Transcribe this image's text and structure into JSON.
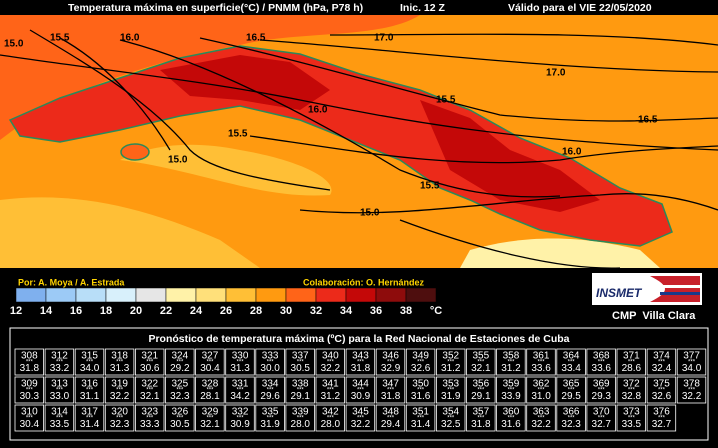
{
  "header": {
    "title": "Temperatura máxima en superficie(°C) / PNMM (hPa, P78 h)",
    "init": "Inic. 12 Z",
    "valid": "Válido para el VIE 22/05/2020"
  },
  "map": {
    "contour_labels": [
      "15.0",
      "15.5",
      "16.0",
      "16.5",
      "17.0",
      "17.0",
      "16.5",
      "16.0",
      "15.5",
      "15.5",
      "16.0",
      "15.5",
      "15.0",
      "15.0"
    ]
  },
  "credits": {
    "authors": "Por: A. Moya / A. Estrada",
    "collaboration": "Colaboración: O. Hernández"
  },
  "color_scale": {
    "labels": [
      12,
      14,
      16,
      18,
      20,
      22,
      24,
      26,
      28,
      30,
      32,
      34,
      36,
      38
    ],
    "colors": [
      "#7fb0ee",
      "#9ccaf6",
      "#b8def8",
      "#d8f0fb",
      "#e6e6e6",
      "#fff2a8",
      "#ffe07a",
      "#ffbf36",
      "#ff9a10",
      "#ff6418",
      "#ec2a1a",
      "#c40808",
      "#8e0c0c",
      "#4e0e0e"
    ],
    "unit": "°C"
  },
  "logo": {
    "text": "INSMET",
    "center": "CMP  Villa Clara"
  },
  "table": {
    "title": "Pronóstico de temperatura máxima (ºC) para la Red Nacional de Estaciones de Cuba",
    "rows": [
      [
        [
          "308",
          "***",
          "31.8"
        ],
        [
          "312",
          "***",
          "33.2"
        ],
        [
          "315",
          "***",
          "34.0"
        ],
        [
          "318",
          "***",
          "31.3"
        ],
        [
          "321",
          "***",
          "30.6"
        ],
        [
          "324",
          "***",
          "29.2"
        ],
        [
          "327",
          "***",
          "30.4"
        ],
        [
          "330",
          "***",
          "31.3"
        ],
        [
          "333",
          "***",
          "30.0"
        ],
        [
          "337",
          "***",
          "30.5"
        ],
        [
          "340",
          "***",
          "32.2"
        ],
        [
          "343",
          "***",
          "31.8"
        ],
        [
          "346",
          "***",
          "32.9"
        ],
        [
          "349",
          "***",
          "32.6"
        ],
        [
          "352",
          "***",
          "31.2"
        ],
        [
          "355",
          "***",
          "32.1"
        ],
        [
          "358",
          "***",
          "31.2"
        ],
        [
          "361",
          "***",
          "33.6"
        ],
        [
          "364",
          "***",
          "33.4"
        ],
        [
          "368",
          "***",
          "33.6"
        ],
        [
          "371",
          "***",
          "28.6"
        ],
        [
          "374",
          "***",
          "32.4"
        ],
        [
          "377",
          "***",
          "34.0"
        ]
      ],
      [
        [
          "309",
          "***",
          "30.3"
        ],
        [
          "313",
          "***",
          "33.0"
        ],
        [
          "316",
          "***",
          "31.1"
        ],
        [
          "319",
          "***",
          "32.2"
        ],
        [
          "322",
          "***",
          "32.1"
        ],
        [
          "325",
          "***",
          "32.3"
        ],
        [
          "328",
          "***",
          "28.1"
        ],
        [
          "331",
          "***",
          "34.2"
        ],
        [
          "334",
          "***",
          "29.6"
        ],
        [
          "338",
          "***",
          "29.1"
        ],
        [
          "341",
          "***",
          "31.2"
        ],
        [
          "344",
          "***",
          "30.9"
        ],
        [
          "347",
          "***",
          "31.8"
        ],
        [
          "350",
          "***",
          "31.6"
        ],
        [
          "353",
          "***",
          "31.9"
        ],
        [
          "356",
          "***",
          "29.1"
        ],
        [
          "359",
          "***",
          "33.9"
        ],
        [
          "362",
          "***",
          "31.0"
        ],
        [
          "365",
          "***",
          "29.5"
        ],
        [
          "369",
          "***",
          "29.3"
        ],
        [
          "372",
          "***",
          "32.8"
        ],
        [
          "375",
          "***",
          "32.6"
        ],
        [
          "378",
          "***",
          "32.2"
        ]
      ],
      [
        [
          "310",
          "***",
          "30.4"
        ],
        [
          "314",
          "***",
          "33.5"
        ],
        [
          "317",
          "***",
          "31.4"
        ],
        [
          "320",
          "***",
          "32.3"
        ],
        [
          "323",
          "***",
          "33.3"
        ],
        [
          "326",
          "***",
          "30.5"
        ],
        [
          "329",
          "***",
          "32.1"
        ],
        [
          "332",
          "***",
          "30.9"
        ],
        [
          "335",
          "***",
          "31.9"
        ],
        [
          "339",
          "***",
          "28.0"
        ],
        [
          "342",
          "***",
          "28.0"
        ],
        [
          "345",
          "***",
          "32.2"
        ],
        [
          "348",
          "***",
          "29.4"
        ],
        [
          "351",
          "***",
          "31.4"
        ],
        [
          "354",
          "***",
          "32.5"
        ],
        [
          "357",
          "***",
          "31.8"
        ],
        [
          "360",
          "***",
          "31.6"
        ],
        [
          "363",
          "***",
          "32.2"
        ],
        [
          "366",
          "***",
          "32.3"
        ],
        [
          "370",
          "***",
          "32.7"
        ],
        [
          "373",
          "***",
          "33.5"
        ],
        [
          "376",
          "***",
          "32.7"
        ]
      ]
    ]
  }
}
